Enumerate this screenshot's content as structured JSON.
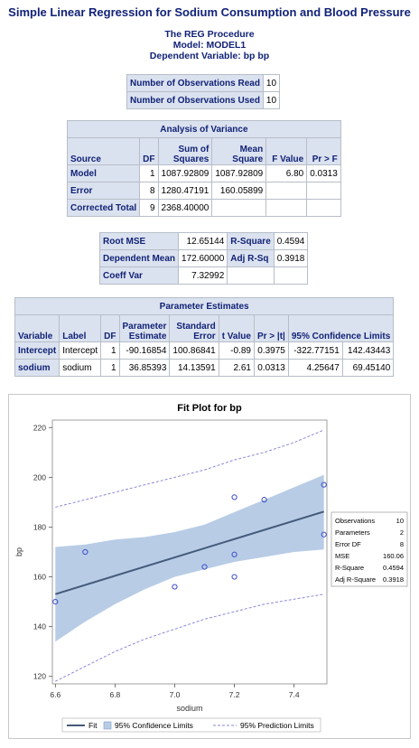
{
  "title": "Simple Linear Regression for Sodium Consumption and Blood Pressure",
  "procedure": {
    "line1": "The REG Procedure",
    "line2": "Model: MODEL1",
    "line3": "Dependent Variable: bp bp"
  },
  "observations": {
    "read_label": "Number of Observations Read",
    "read_value": "10",
    "used_label": "Number of Observations Used",
    "used_value": "10"
  },
  "anova": {
    "caption": "Analysis of Variance",
    "headers": [
      "Source",
      "DF",
      "Sum of Squares",
      "Mean Square",
      "F Value",
      "Pr > F"
    ],
    "header_parts": {
      "ss1": "Sum of",
      "ss2": "Squares",
      "ms1": "Mean",
      "ms2": "Square"
    },
    "rows": [
      {
        "source": "Model",
        "df": "1",
        "ss": "1087.92809",
        "ms": "1087.92809",
        "f": "6.80",
        "p": "0.0313"
      },
      {
        "source": "Error",
        "df": "8",
        "ss": "1280.47191",
        "ms": "160.05899",
        "f": "",
        "p": ""
      },
      {
        "source": "Corrected Total",
        "df": "9",
        "ss": "2368.40000",
        "ms": "",
        "f": "",
        "p": ""
      }
    ]
  },
  "fit_stats": {
    "rows": [
      {
        "l1": "Root MSE",
        "v1": "12.65144",
        "l2": "R-Square",
        "v2": "0.4594"
      },
      {
        "l1": "Dependent Mean",
        "v1": "172.60000",
        "l2": "Adj R-Sq",
        "v2": "0.3918"
      },
      {
        "l1": "Coeff Var",
        "v1": "7.32992",
        "l2": "",
        "v2": ""
      }
    ]
  },
  "params": {
    "caption": "Parameter Estimates",
    "headers": {
      "variable": "Variable",
      "label": "Label",
      "df": "DF",
      "est1": "Parameter",
      "est2": "Estimate",
      "se1": "Standard",
      "se2": "Error",
      "t": "t Value",
      "p": "Pr > |t|",
      "ci": "95% Confidence Limits"
    },
    "rows": [
      {
        "variable": "Intercept",
        "label": "Intercept",
        "df": "1",
        "est": "-90.16854",
        "se": "100.86841",
        "t": "-0.89",
        "p": "0.3975",
        "lo": "-322.77151",
        "hi": "142.43443"
      },
      {
        "variable": "sodium",
        "label": "sodium",
        "df": "1",
        "est": "36.85393",
        "se": "14.13591",
        "t": "2.61",
        "p": "0.0313",
        "lo": "4.25647",
        "hi": "69.45140"
      }
    ]
  },
  "fit_plot": {
    "title": "Fit Plot for bp",
    "stats_box": [
      {
        "label": "Observations",
        "value": "10"
      },
      {
        "label": "Parameters",
        "value": "2"
      },
      {
        "label": "Error DF",
        "value": "8"
      },
      {
        "label": "MSE",
        "value": "160.06"
      },
      {
        "label": "R-Square",
        "value": "0.4594"
      },
      {
        "label": "Adj R-Square",
        "value": "0.3918"
      }
    ],
    "legend": {
      "fit": "Fit",
      "ci": "95% Confidence Limits",
      "pi": "95% Prediction Limits"
    }
  },
  "chart_data": {
    "type": "scatter",
    "title": "Fit Plot for bp",
    "xlabel": "sodium",
    "ylabel": "bp",
    "xlim": [
      6.59,
      7.51
    ],
    "ylim": [
      117,
      223
    ],
    "xticks": [
      6.6,
      6.8,
      7.0,
      7.2,
      7.4
    ],
    "yticks": [
      120,
      140,
      160,
      180,
      200,
      220
    ],
    "points": [
      {
        "x": 6.6,
        "y": 150
      },
      {
        "x": 6.7,
        "y": 170
      },
      {
        "x": 7.0,
        "y": 156
      },
      {
        "x": 7.1,
        "y": 164
      },
      {
        "x": 7.2,
        "y": 192
      },
      {
        "x": 7.2,
        "y": 169
      },
      {
        "x": 7.2,
        "y": 160
      },
      {
        "x": 7.3,
        "y": 191
      },
      {
        "x": 7.5,
        "y": 197
      },
      {
        "x": 7.5,
        "y": 177
      }
    ],
    "fit_line": {
      "intercept": -90.16854,
      "slope": 36.85393
    },
    "confidence_band": {
      "x": [
        6.6,
        6.7,
        6.8,
        6.9,
        7.0,
        7.1,
        7.2,
        7.3,
        7.4,
        7.5
      ],
      "lower": [
        134,
        142,
        149,
        155,
        160,
        163,
        166,
        168,
        170,
        171
      ],
      "upper": [
        172,
        173,
        175,
        176,
        178,
        181,
        186,
        191,
        196,
        201
      ]
    },
    "prediction_band": {
      "x": [
        6.6,
        6.7,
        6.8,
        6.9,
        7.0,
        7.1,
        7.2,
        7.3,
        7.4,
        7.5
      ],
      "lower": [
        118,
        124,
        130,
        135,
        139,
        143,
        146,
        149,
        151,
        153
      ],
      "upper": [
        188,
        191,
        194,
        197,
        200,
        203,
        207,
        210,
        214,
        219
      ]
    },
    "colors": {
      "band": "#b8cce6",
      "fit": "#445a7c",
      "points": "#3c4cc8",
      "pred": "#8a8ad8"
    }
  }
}
